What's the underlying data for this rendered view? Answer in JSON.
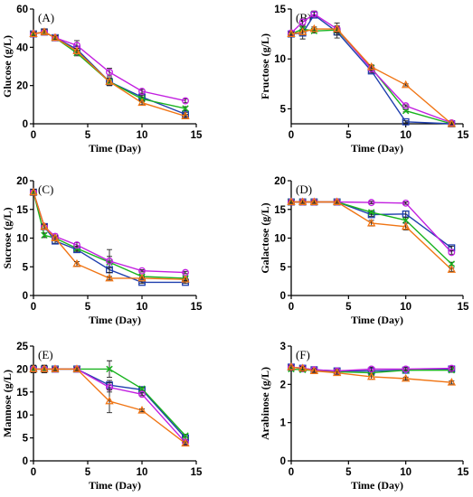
{
  "series_colors": {
    "blue": "#1f3fae",
    "purple": "#c21fe0",
    "green": "#19b31f",
    "orange": "#f07514"
  },
  "series_markers": {
    "blue": "square",
    "purple": "circle",
    "green": "x",
    "orange": "triangle"
  },
  "chart_data": [
    {
      "id": "A",
      "type": "line",
      "panel_label": "(A)",
      "xlabel": "Time (Day)",
      "ylabel": "Glucose (g/L)",
      "xlim": [
        0,
        15
      ],
      "ylim": [
        0,
        60
      ],
      "xticks": [
        0,
        5,
        10,
        15
      ],
      "yticks": [
        0,
        20,
        40,
        60
      ],
      "x": [
        0,
        1,
        2,
        4,
        7,
        10,
        14
      ],
      "series": [
        {
          "color_key": "blue",
          "values": [
            47,
            48,
            45,
            39,
            22,
            14,
            5
          ],
          "err": [
            1,
            1.5,
            1,
            1.5,
            2,
            1,
            1
          ]
        },
        {
          "color_key": "purple",
          "values": [
            47,
            48,
            45,
            41,
            27,
            17,
            12
          ],
          "err": [
            1,
            1.5,
            1,
            2.5,
            2,
            1,
            1
          ]
        },
        {
          "color_key": "green",
          "values": [
            47,
            48,
            45,
            37,
            22,
            13,
            8
          ],
          "err": [
            1,
            1.5,
            1,
            1.5,
            2,
            1,
            1
          ]
        },
        {
          "color_key": "orange",
          "values": [
            47,
            48,
            45,
            38,
            22,
            11,
            4
          ],
          "err": [
            1,
            1.5,
            1,
            1.5,
            2,
            1,
            1
          ]
        }
      ]
    },
    {
      "id": "B",
      "type": "line",
      "panel_label": "(B)",
      "xlabel": "Time (Day)",
      "ylabel": "Fructose (g/L)",
      "xlim": [
        0,
        15
      ],
      "ylim": [
        3.5,
        15
      ],
      "xticks": [
        0,
        5,
        10,
        15
      ],
      "yticks": [
        5,
        10,
        15
      ],
      "x": [
        0,
        1,
        2,
        4,
        7,
        10,
        14
      ],
      "series": [
        {
          "color_key": "blue",
          "values": [
            12.5,
            12.6,
            14.4,
            12.7,
            8.8,
            3.7,
            3.5
          ],
          "err": [
            0.2,
            0.6,
            0.3,
            0.6,
            0.2,
            0.1,
            0.1
          ]
        },
        {
          "color_key": "purple",
          "values": [
            12.6,
            13.7,
            14.5,
            13.0,
            9.0,
            5.3,
            3.6
          ],
          "err": [
            0.2,
            0.3,
            0.3,
            0.6,
            0.2,
            0.1,
            0.1
          ]
        },
        {
          "color_key": "green",
          "values": [
            12.5,
            13.0,
            12.8,
            12.9,
            9.1,
            4.8,
            3.5
          ],
          "err": [
            0.2,
            0.3,
            0.2,
            0.3,
            0.2,
            0.1,
            0.1
          ]
        },
        {
          "color_key": "orange",
          "values": [
            12.5,
            12.7,
            13.0,
            13.0,
            9.2,
            7.4,
            3.5
          ],
          "err": [
            0.2,
            0.3,
            0.2,
            0.3,
            0.2,
            0.1,
            0.1
          ]
        }
      ]
    },
    {
      "id": "C",
      "type": "line",
      "panel_label": "(C)",
      "xlabel": "Time (Day)",
      "ylabel": "Sucrose (g/L)",
      "xlim": [
        0,
        15
      ],
      "ylim": [
        0,
        20
      ],
      "xticks": [
        0,
        5,
        10,
        15
      ],
      "yticks": [
        0,
        5,
        10,
        15,
        20
      ],
      "x": [
        0,
        1,
        2,
        4,
        7,
        10,
        14
      ],
      "series": [
        {
          "color_key": "blue",
          "values": [
            18,
            12,
            9.5,
            8,
            4.5,
            2.3,
            2.3
          ],
          "err": [
            0.5,
            0.4,
            0.4,
            0.4,
            1.2,
            0.2,
            0.2
          ]
        },
        {
          "color_key": "purple",
          "values": [
            18,
            12,
            10.3,
            8.8,
            6.0,
            4.3,
            4.0
          ],
          "err": [
            0.5,
            0.4,
            0.4,
            0.4,
            2.0,
            0.2,
            0.2
          ]
        },
        {
          "color_key": "green",
          "values": [
            18,
            10.5,
            10,
            8.2,
            5.8,
            3.3,
            3.0
          ],
          "err": [
            0.5,
            0.4,
            0.4,
            0.4,
            1.0,
            0.2,
            0.2
          ]
        },
        {
          "color_key": "orange",
          "values": [
            18,
            12,
            10,
            5.5,
            3.0,
            3.0,
            2.8
          ],
          "err": [
            0.5,
            0.4,
            0.4,
            0.4,
            0.3,
            0.2,
            0.2
          ]
        }
      ]
    },
    {
      "id": "D",
      "type": "line",
      "panel_label": "(D)",
      "xlabel": "Time (Day)",
      "ylabel": "Galactose (g/L)",
      "xlim": [
        0,
        15
      ],
      "ylim": [
        0,
        20
      ],
      "xticks": [
        0,
        5,
        10,
        15
      ],
      "yticks": [
        0,
        5,
        10,
        15,
        20
      ],
      "x": [
        0,
        1,
        2,
        4,
        7,
        10,
        14
      ],
      "series": [
        {
          "color_key": "blue",
          "values": [
            16.3,
            16.3,
            16.3,
            16.3,
            14.1,
            14.2,
            8.3
          ],
          "err": [
            0.2,
            0.2,
            0.2,
            0.2,
            0.3,
            0.5,
            0.3
          ]
        },
        {
          "color_key": "purple",
          "values": [
            16.3,
            16.3,
            16.3,
            16.3,
            16.2,
            16.1,
            7.5
          ],
          "err": [
            0.2,
            0.2,
            0.2,
            0.2,
            0.2,
            0.2,
            0.3
          ]
        },
        {
          "color_key": "green",
          "values": [
            16.3,
            16.3,
            16.3,
            16.3,
            14.5,
            13.1,
            5.5
          ],
          "err": [
            0.2,
            0.2,
            0.2,
            0.2,
            0.3,
            0.5,
            0.3
          ]
        },
        {
          "color_key": "orange",
          "values": [
            16.3,
            16.3,
            16.3,
            16.3,
            12.6,
            12.0,
            4.5
          ],
          "err": [
            0.2,
            0.2,
            0.2,
            0.2,
            0.5,
            0.6,
            0.3
          ]
        }
      ]
    },
    {
      "id": "E",
      "type": "line",
      "panel_label": "(E)",
      "xlabel": "Time (Day)",
      "ylabel": "Mannose (g/L)",
      "xlim": [
        0,
        15
      ],
      "ylim": [
        0,
        25
      ],
      "xticks": [
        0,
        5,
        10,
        15
      ],
      "yticks": [
        0,
        5,
        10,
        15,
        20,
        25
      ],
      "x": [
        0,
        1,
        2,
        4,
        7,
        10,
        14
      ],
      "series": [
        {
          "color_key": "blue",
          "values": [
            20,
            20,
            20,
            20,
            16.5,
            15.5,
            5.0
          ],
          "err": [
            0.8,
            0.8,
            0.3,
            0.3,
            1.0,
            0.3,
            0.3
          ]
        },
        {
          "color_key": "purple",
          "values": [
            20,
            20,
            20,
            20,
            16.0,
            14.5,
            4.0
          ],
          "err": [
            0.8,
            0.8,
            0.3,
            0.3,
            1.0,
            0.3,
            0.3
          ]
        },
        {
          "color_key": "green",
          "values": [
            20,
            20,
            20,
            20,
            20.0,
            15.7,
            5.5
          ],
          "err": [
            0.8,
            0.8,
            0.3,
            0.3,
            1.8,
            0.3,
            0.3
          ]
        },
        {
          "color_key": "orange",
          "values": [
            20,
            20,
            20,
            20,
            13.0,
            11.0,
            3.8
          ],
          "err": [
            0.8,
            0.8,
            0.3,
            0.3,
            2.5,
            0.3,
            0.3
          ]
        }
      ]
    },
    {
      "id": "F",
      "type": "line",
      "panel_label": "(F)",
      "xlabel": "Time (Day)",
      "ylabel": "Arabinose (g/L)",
      "xlim": [
        0,
        15
      ],
      "ylim": [
        0,
        3
      ],
      "xticks": [
        0,
        5,
        10,
        15
      ],
      "yticks": [
        0,
        1,
        2,
        3
      ],
      "x": [
        0,
        1,
        2,
        4,
        7,
        10,
        14
      ],
      "series": [
        {
          "color_key": "blue",
          "values": [
            2.45,
            2.42,
            2.38,
            2.35,
            2.35,
            2.37,
            2.4
          ],
          "err": [
            0.05,
            0.05,
            0.04,
            0.04,
            0.05,
            0.04,
            0.05
          ]
        },
        {
          "color_key": "purple",
          "values": [
            2.45,
            2.42,
            2.38,
            2.35,
            2.4,
            2.4,
            2.42
          ],
          "err": [
            0.05,
            0.05,
            0.04,
            0.04,
            0.05,
            0.04,
            0.05
          ]
        },
        {
          "color_key": "green",
          "values": [
            2.4,
            2.38,
            2.36,
            2.33,
            2.3,
            2.37,
            2.37
          ],
          "err": [
            0.05,
            0.05,
            0.04,
            0.04,
            0.05,
            0.04,
            0.05
          ]
        },
        {
          "color_key": "orange",
          "values": [
            2.45,
            2.42,
            2.35,
            2.3,
            2.2,
            2.15,
            2.05
          ],
          "err": [
            0.05,
            0.05,
            0.04,
            0.04,
            0.07,
            0.04,
            0.04
          ]
        }
      ]
    }
  ]
}
